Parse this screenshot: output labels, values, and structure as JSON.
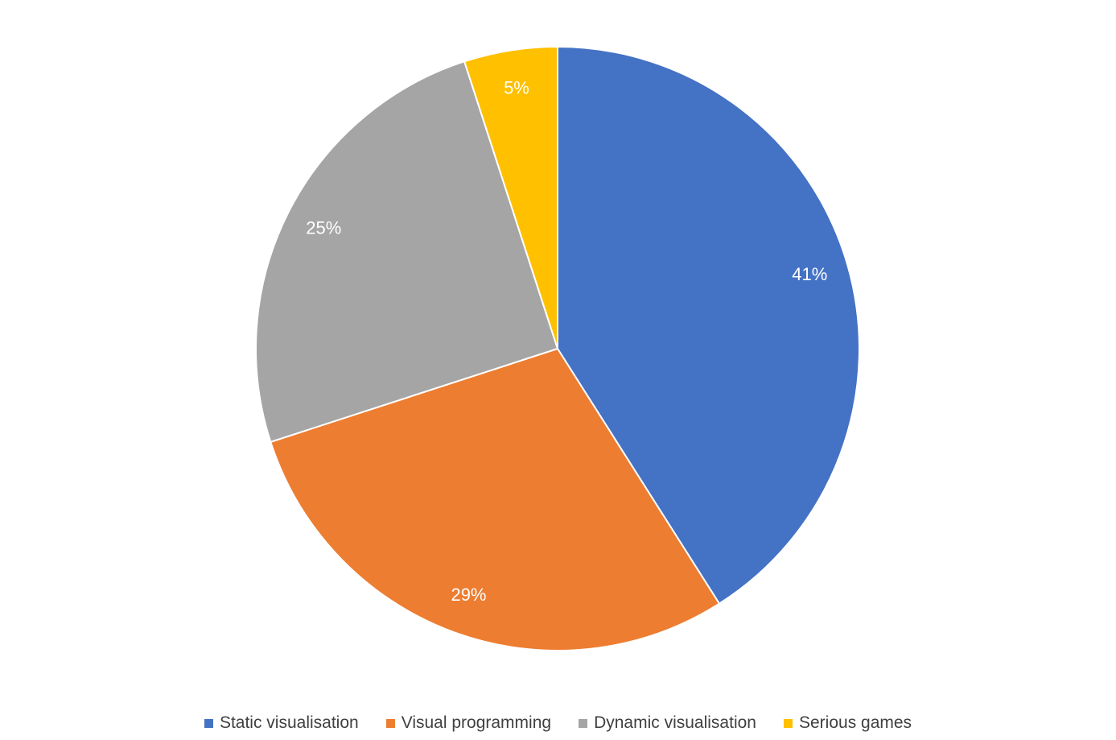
{
  "chart_data": {
    "type": "pie",
    "title": "",
    "start_angle_deg": 0,
    "direction": "clockwise",
    "legend_position": "bottom",
    "slice_border_color": "#ffffff",
    "slices": [
      {
        "label": "Static visualisation",
        "value": 41,
        "display": "41%",
        "color": "#4472C4"
      },
      {
        "label": "Visual programming",
        "value": 29,
        "display": "29%",
        "color": "#ED7D31"
      },
      {
        "label": "Dynamic visualisation",
        "value": 25,
        "display": "25%",
        "color": "#A5A5A5"
      },
      {
        "label": "Serious games",
        "value": 5,
        "display": "5%",
        "color": "#FFC000"
      }
    ]
  }
}
